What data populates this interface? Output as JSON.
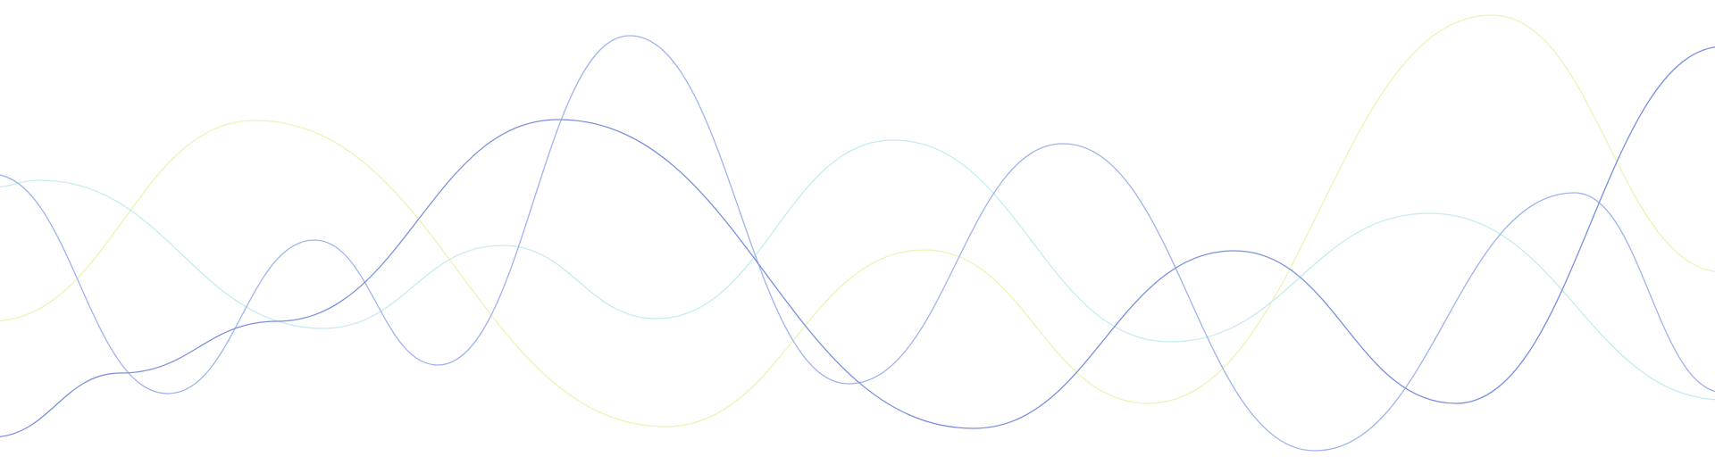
{
  "waves": [
    {
      "name": "wave-yellow",
      "color": "#eef3b6",
      "opacity": 1.0
    },
    {
      "name": "wave-cyan",
      "color": "#c6ecef",
      "opacity": 1.0
    },
    {
      "name": "wave-light-blue",
      "color": "#9fb3ee",
      "opacity": 1.0
    },
    {
      "name": "wave-blue",
      "color": "#7b90dc",
      "opacity": 1.0
    }
  ]
}
